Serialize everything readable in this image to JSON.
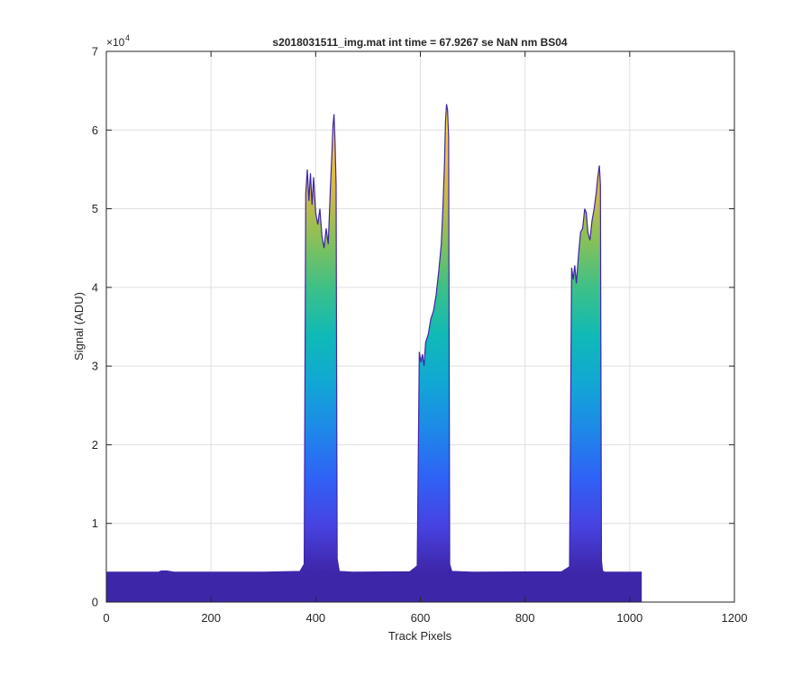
{
  "chart_data": {
    "type": "area",
    "title": "s2018031511_img.mat int time = 67.9267 se  NaN nm BS04",
    "xlabel": "Track Pixels",
    "ylabel": "Signal (ADU)",
    "xlim": [
      0,
      1200
    ],
    "ylim": [
      0,
      70000
    ],
    "xticks": [
      0,
      200,
      400,
      600,
      800,
      1000,
      1200
    ],
    "yticks": [
      0,
      1,
      2,
      3,
      4,
      5,
      6,
      7
    ],
    "ytick_labels": [
      "0",
      "1",
      "2",
      "3",
      "4",
      "5",
      "6",
      "7"
    ],
    "y_exponent_base": "×10",
    "y_exponent_power": "4",
    "grid": true,
    "colormap": [
      "#3e26a8",
      "#4743e2",
      "#2f62f6",
      "#1e88e8",
      "#11a7d4",
      "#10bab6",
      "#3dc087",
      "#87c059",
      "#d0b944",
      "#f6c33a",
      "#f9fb15"
    ],
    "baseline": 3800,
    "series": [
      {
        "x": [
          0,
          100,
          105,
          115,
          130,
          300,
          370,
          378,
          381,
          384,
          387,
          390,
          393,
          396,
          400,
          404,
          408,
          412,
          416,
          420,
          424,
          428,
          431,
          433,
          435,
          437,
          439,
          441,
          445,
          470,
          580,
          594,
          598,
          601,
          604,
          607,
          610,
          615,
          620,
          625,
          630,
          635,
          640,
          643,
          646,
          648,
          650,
          652,
          654,
          656,
          660,
          700,
          870,
          885,
          889,
          892,
          895,
          898,
          902,
          906,
          910,
          914,
          917,
          920,
          924,
          928,
          932,
          936,
          939,
          942,
          944,
          946,
          948,
          952,
          980,
          1023
        ],
        "y": [
          3800,
          3800,
          3950,
          3950,
          3800,
          3800,
          3900,
          4800,
          52000,
          55000,
          51000,
          54500,
          50500,
          54000,
          49500,
          48000,
          50000,
          46500,
          45000,
          47500,
          45500,
          52500,
          57000,
          60500,
          62000,
          58500,
          53000,
          5500,
          3900,
          3800,
          3850,
          4600,
          31800,
          30500,
          31500,
          30000,
          33000,
          34000,
          36000,
          37000,
          39000,
          42000,
          45500,
          50000,
          55500,
          61000,
          63300,
          62500,
          59000,
          4800,
          3900,
          3800,
          3850,
          4500,
          42500,
          41000,
          42800,
          40500,
          44000,
          47000,
          47500,
          50000,
          49500,
          47000,
          46000,
          48500,
          50000,
          52000,
          54000,
          55500,
          53000,
          5200,
          3950,
          3800,
          3800,
          3800
        ]
      }
    ]
  }
}
